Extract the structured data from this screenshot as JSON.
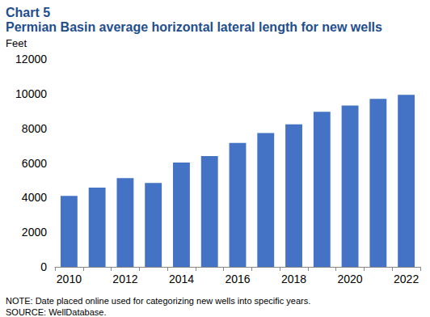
{
  "chart_data": {
    "type": "bar",
    "title": "Chart 5",
    "subtitle": "Permian Basin average horizontal lateral length for new wells",
    "ylabel": "Feet",
    "annotations": [
      "NOTE: Date placed online used for categorizing new wells into specific years.",
      "SOURCE: WellDatabase."
    ],
    "categories": [
      "2010",
      null,
      "2012",
      null,
      "2014",
      null,
      "2016",
      null,
      "2018",
      null,
      "2020",
      null,
      "2022"
    ],
    "values": [
      4100,
      4580,
      5130,
      4850,
      6020,
      6400,
      7150,
      7730,
      8230,
      8950,
      9320,
      9700,
      9930
    ],
    "color": "#4472c4",
    "ylim": [
      0,
      12000
    ],
    "yticks": [
      0,
      2000,
      4000,
      6000,
      8000,
      10000,
      12000
    ],
    "grid": false
  }
}
